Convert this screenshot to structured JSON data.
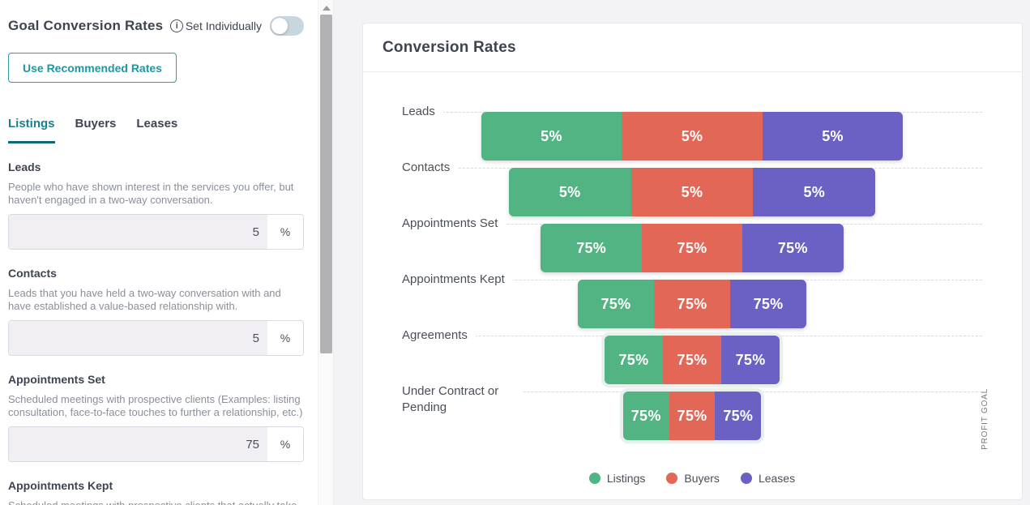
{
  "panel": {
    "title": "Goal Conversion Rates",
    "toggle_label": "Set Individually",
    "toggle_state": "off",
    "recommended_button": "Use Recommended Rates",
    "tabs": [
      {
        "label": "Listings",
        "active": true
      },
      {
        "label": "Buyers",
        "active": false
      },
      {
        "label": "Leases",
        "active": false
      }
    ],
    "fields": [
      {
        "label": "Leads",
        "description": "People who have shown interest in the services you offer, but haven't engaged in a two-way conversation.",
        "value": "5",
        "suffix": "%"
      },
      {
        "label": "Contacts",
        "description": "Leads that you have held a two-way conversation with and have established a value-based relationship with.",
        "value": "5",
        "suffix": "%"
      },
      {
        "label": "Appointments Set",
        "description": "Scheduled meetings with prospective clients (Examples: listing consultation, face-to-face touches to further a relationship, etc.)",
        "value": "75",
        "suffix": "%"
      },
      {
        "label": "Appointments Kept",
        "description": "Scheduled meetings with prospective clients that actually take place.",
        "partial": true
      }
    ]
  },
  "colors": {
    "accent_teal": "#17818c",
    "listings_green": "#52b483",
    "buyers_red": "#e26756",
    "leases_purple": "#6b60c4"
  },
  "chart_data": {
    "type": "bar",
    "subtype": "horizontal-stacked-funnel",
    "title": "Conversion Rates",
    "categories": [
      "Leads",
      "Contacts",
      "Appointments Set",
      "Appointments Kept",
      "Agreements",
      "Under Contract or Pending"
    ],
    "series": [
      {
        "name": "Listings",
        "color": "#52b483",
        "values": [
          5,
          5,
          75,
          75,
          75,
          75
        ]
      },
      {
        "name": "Buyers",
        "color": "#e26756",
        "values": [
          5,
          5,
          75,
          75,
          75,
          75
        ]
      },
      {
        "name": "Leases",
        "color": "#6b60c4",
        "values": [
          5,
          5,
          75,
          75,
          75,
          75
        ]
      }
    ],
    "value_format": "percent",
    "legend_position": "bottom",
    "grid": "dashed-horizontal",
    "right_axis_label": "PROFIT GOAL",
    "row_width_pct": [
      72.7,
      63.2,
      52.1,
      39.4,
      30.2,
      23.8
    ],
    "highlighted_rows": [
      4,
      5
    ]
  }
}
